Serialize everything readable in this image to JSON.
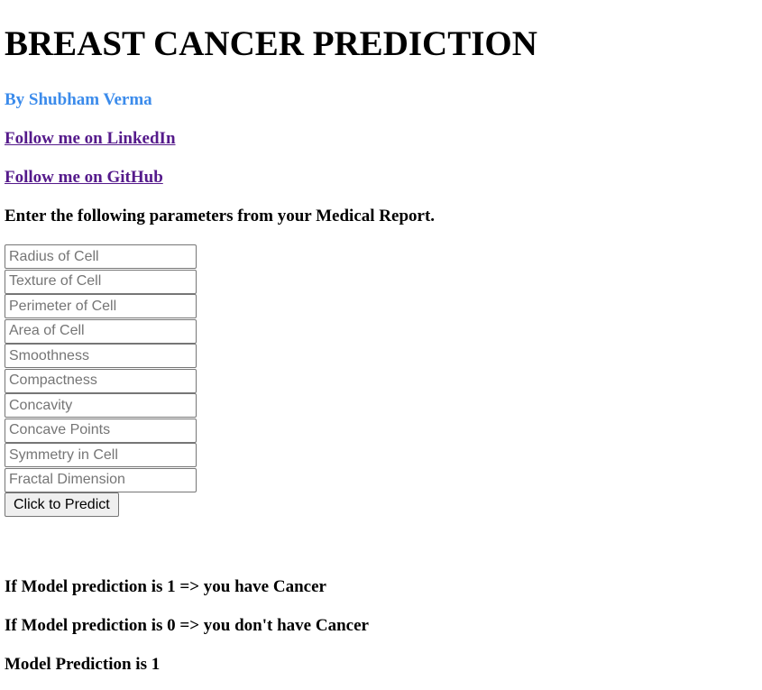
{
  "header": {
    "title": "BREAST CANCER PREDICTION",
    "author": "By Shubham Verma"
  },
  "links": {
    "linkedin": "Follow me on LinkedIn",
    "github": "Follow me on GitHub"
  },
  "instructions": "Enter the following parameters from your Medical Report.",
  "form": {
    "fields": [
      {
        "placeholder": "Radius of Cell",
        "value": ""
      },
      {
        "placeholder": "Texture of Cell",
        "value": ""
      },
      {
        "placeholder": "Perimeter of Cell",
        "value": ""
      },
      {
        "placeholder": "Area of Cell",
        "value": ""
      },
      {
        "placeholder": "Smoothness",
        "value": ""
      },
      {
        "placeholder": "Compactness",
        "value": ""
      },
      {
        "placeholder": "Concavity",
        "value": ""
      },
      {
        "placeholder": "Concave Points",
        "value": ""
      },
      {
        "placeholder": "Symmetry in Cell",
        "value": ""
      },
      {
        "placeholder": "Fractal Dimension",
        "value": ""
      }
    ],
    "submit_label": "Click to Predict"
  },
  "info": {
    "cancer": "If Model prediction is 1 => you have Cancer",
    "no_cancer": "If Model prediction is 0 => you don't have Cancer",
    "result": "Model Prediction is 1"
  },
  "colors": {
    "author": "#3b8beb",
    "link": "#551a8b",
    "text": "#000000",
    "background": "#ffffff"
  }
}
